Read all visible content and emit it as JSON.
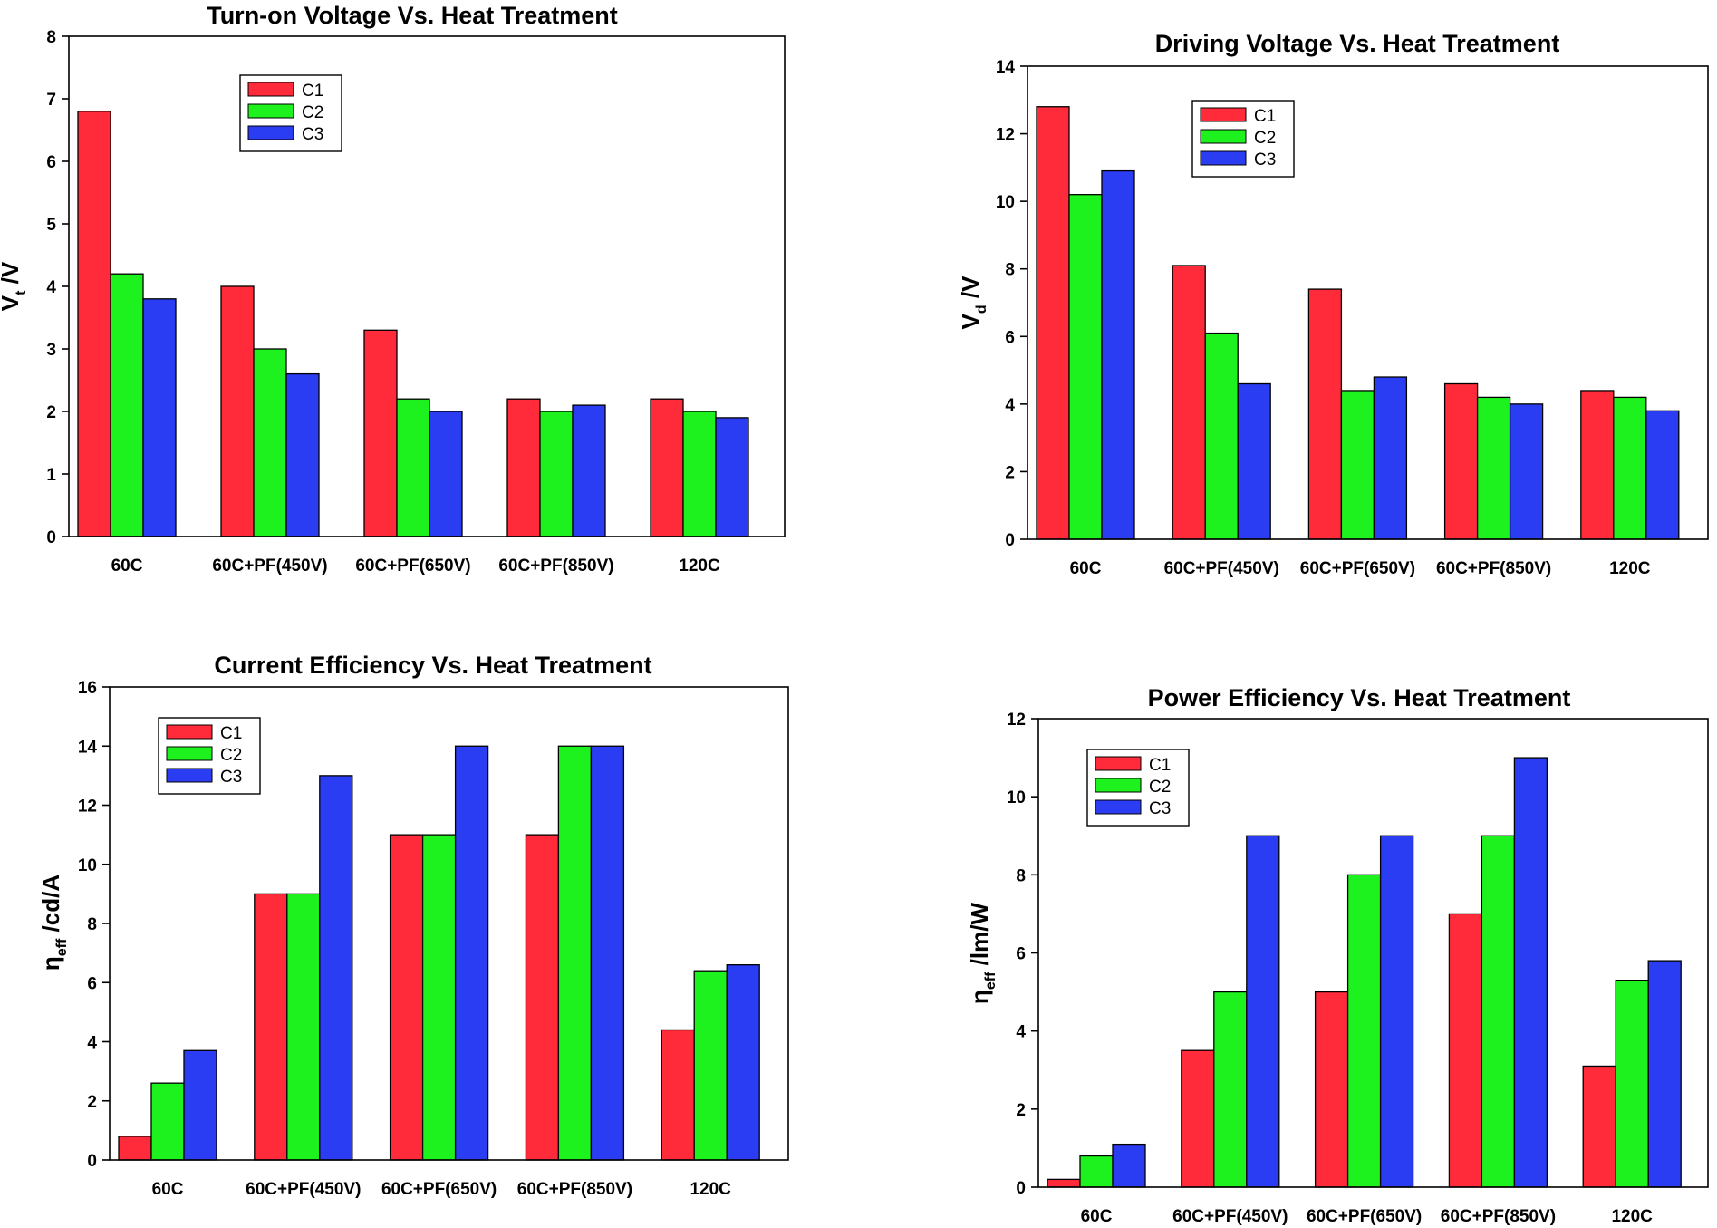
{
  "colors": {
    "C1": "#ff2b3a",
    "C2": "#1ef21e",
    "C3": "#2b3df2"
  },
  "chart_data": [
    {
      "type": "bar",
      "title": "Turn-on Voltage Vs. Heat Treatment",
      "ylabel_main": "V",
      "ylabel_sub": "t",
      "ylabel_rest": " /V",
      "categories": [
        "60C",
        "60C+PF(450V)",
        "60C+PF(650V)",
        "60C+PF(850V)",
        "120C"
      ],
      "ylim": [
        0,
        8
      ],
      "yticks": [
        "0",
        "1",
        "2",
        "3",
        "4",
        "5",
        "6",
        "7",
        "8"
      ],
      "legend_position": "top-left",
      "series": [
        {
          "name": "C1",
          "values": [
            6.8,
            4.0,
            3.3,
            2.2,
            2.2
          ]
        },
        {
          "name": "C2",
          "values": [
            4.2,
            3.0,
            2.2,
            2.0,
            2.0
          ]
        },
        {
          "name": "C3",
          "values": [
            3.8,
            2.6,
            2.0,
            2.1,
            1.9
          ]
        }
      ]
    },
    {
      "type": "bar",
      "title": "Driving Voltage Vs. Heat Treatment",
      "ylabel_main": "V",
      "ylabel_sub": "d",
      "ylabel_rest": " /V",
      "categories": [
        "60C",
        "60C+PF(450V)",
        "60C+PF(650V)",
        "60C+PF(850V)",
        "120C"
      ],
      "ylim": [
        0,
        14
      ],
      "yticks": [
        "0",
        "2",
        "4",
        "6",
        "8",
        "10",
        "12",
        "14"
      ],
      "legend_position": "top-left",
      "series": [
        {
          "name": "C1",
          "values": [
            12.8,
            8.1,
            7.4,
            4.6,
            4.4
          ]
        },
        {
          "name": "C2",
          "values": [
            10.2,
            6.1,
            4.4,
            4.2,
            4.2
          ]
        },
        {
          "name": "C3",
          "values": [
            10.9,
            4.6,
            4.8,
            4.0,
            3.8
          ]
        }
      ]
    },
    {
      "type": "bar",
      "title": "Current Efficiency Vs. Heat Treatment",
      "ylabel_main": "η",
      "ylabel_sub": "eff",
      "ylabel_rest": " /cd/A",
      "categories": [
        "60C",
        "60C+PF(450V)",
        "60C+PF(650V)",
        "60C+PF(850V)",
        "120C"
      ],
      "ylim": [
        0,
        16
      ],
      "yticks": [
        "0",
        "2",
        "4",
        "6",
        "8",
        "10",
        "12",
        "14",
        "16"
      ],
      "legend_position": "top-left",
      "series": [
        {
          "name": "C1",
          "values": [
            0.8,
            9.0,
            11.0,
            11.0,
            4.4
          ]
        },
        {
          "name": "C2",
          "values": [
            2.6,
            9.0,
            11.0,
            14.0,
            6.4
          ]
        },
        {
          "name": "C3",
          "values": [
            3.7,
            13.0,
            14.0,
            14.0,
            6.6
          ]
        }
      ]
    },
    {
      "type": "bar",
      "title": "Power Efficiency Vs. Heat Treatment",
      "ylabel_main": "η",
      "ylabel_sub": "eff",
      "ylabel_rest": " /lm/W",
      "categories": [
        "60C",
        "60C+PF(450V)",
        "60C+PF(650V)",
        "60C+PF(850V)",
        "120C"
      ],
      "ylim": [
        0,
        12
      ],
      "yticks": [
        "0",
        "2",
        "4",
        "6",
        "8",
        "10",
        "12"
      ],
      "legend_position": "top-left",
      "series": [
        {
          "name": "C1",
          "values": [
            0.2,
            3.5,
            5.0,
            7.0,
            3.1
          ]
        },
        {
          "name": "C2",
          "values": [
            0.8,
            5.0,
            8.0,
            9.0,
            5.3
          ]
        },
        {
          "name": "C3",
          "values": [
            1.1,
            9.0,
            9.0,
            11.0,
            5.8
          ]
        }
      ]
    }
  ]
}
